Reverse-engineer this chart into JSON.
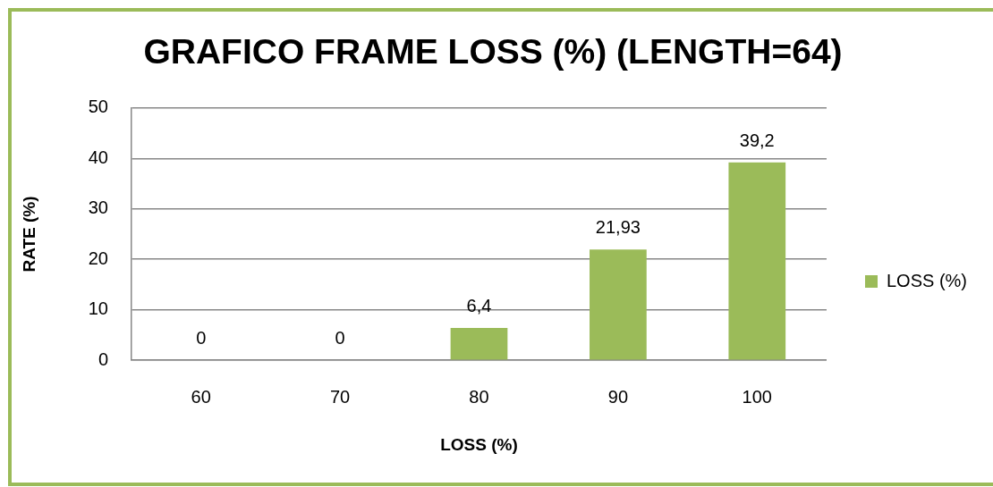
{
  "chart_data": {
    "type": "bar",
    "title": "GRAFICO FRAME LOSS (%) (LENGTH=64)",
    "xlabel": "LOSS (%)",
    "ylabel": "RATE (%)",
    "categories": [
      "60",
      "70",
      "80",
      "90",
      "100"
    ],
    "series": [
      {
        "name": "LOSS (%)",
        "color": "#9bbb59",
        "values": [
          0,
          0,
          6.4,
          21.93,
          39.2
        ],
        "value_labels": [
          "0",
          "0",
          "6,4",
          "21,93",
          "39,2"
        ]
      }
    ],
    "ylim": [
      0,
      50
    ],
    "yticks": [
      0,
      10,
      20,
      30,
      40,
      50
    ],
    "grid": "y",
    "legend": "right"
  }
}
